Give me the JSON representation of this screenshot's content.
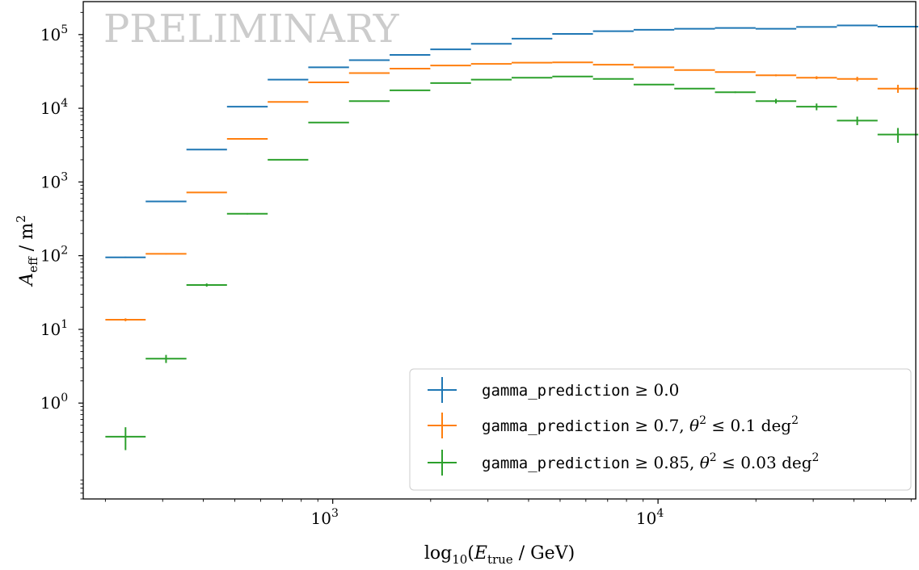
{
  "chart_data": {
    "type": "scatter",
    "title": "",
    "watermark": "PRELIMINARY",
    "xlabel": "log10(Etrue / GeV)",
    "ylabel": "Aeff / m2",
    "xscale": "log",
    "yscale": "log",
    "xlim": [
      171,
      62000
    ],
    "ylim": [
      0.05,
      280000
    ],
    "grid": false,
    "legend_position": "bottom-right",
    "x_ticks": [
      {
        "value": 1000,
        "base": "10",
        "exp": "3"
      },
      {
        "value": 10000,
        "base": "10",
        "exp": "4"
      }
    ],
    "y_ticks": [
      {
        "value": 1,
        "base": "10",
        "exp": "0"
      },
      {
        "value": 10,
        "base": "10",
        "exp": "1"
      },
      {
        "value": 100,
        "base": "10",
        "exp": "2"
      },
      {
        "value": 1000,
        "base": "10",
        "exp": "3"
      },
      {
        "value": 10000,
        "base": "10",
        "exp": "4"
      },
      {
        "value": 100000,
        "base": "10",
        "exp": "5"
      }
    ],
    "bin_edges": [
      200,
      266,
      355,
      473,
      631,
      841,
      1122,
      1496,
      1995,
      2661,
      3548,
      4732,
      6310,
      8414,
      11220,
      14962,
      19953,
      26607,
      35481,
      47315,
      63096
    ],
    "series": [
      {
        "label_code": "gamma_prediction",
        "label_math": "≥ 0.0",
        "color": "#1f77b4",
        "bins": [
          {
            "y": 95,
            "err": 2
          },
          {
            "y": 545,
            "err": 10
          },
          {
            "y": 2750,
            "err": 30
          },
          {
            "y": 10500,
            "err": 80
          },
          {
            "y": 24500,
            "err": 150
          },
          {
            "y": 36000,
            "err": 200
          },
          {
            "y": 45000,
            "err": 250
          },
          {
            "y": 53000,
            "err": 300
          },
          {
            "y": 63000,
            "err": 350
          },
          {
            "y": 75000,
            "err": 400
          },
          {
            "y": 88000,
            "err": 450
          },
          {
            "y": 102000,
            "err": 500
          },
          {
            "y": 111000,
            "err": 550
          },
          {
            "y": 116000,
            "err": 600
          },
          {
            "y": 120000,
            "err": 650
          },
          {
            "y": 123000,
            "err": 700
          },
          {
            "y": 120000,
            "err": 800
          },
          {
            "y": 127000,
            "err": 900
          },
          {
            "y": 133000,
            "err": 1000
          },
          {
            "y": 128000,
            "err": 1500
          }
        ]
      },
      {
        "label_code": "gamma_prediction",
        "label_math": "≥ 0.7, θ² ≤ 0.1 deg²",
        "color": "#ff7f0e",
        "bins": [
          {
            "y": 13.5,
            "err": 0.6
          },
          {
            "y": 106,
            "err": 2
          },
          {
            "y": 720,
            "err": 10
          },
          {
            "y": 3850,
            "err": 30
          },
          {
            "y": 12200,
            "err": 80
          },
          {
            "y": 22500,
            "err": 120
          },
          {
            "y": 30000,
            "err": 180
          },
          {
            "y": 34500,
            "err": 200
          },
          {
            "y": 38000,
            "err": 220
          },
          {
            "y": 40000,
            "err": 240
          },
          {
            "y": 41500,
            "err": 260
          },
          {
            "y": 42000,
            "err": 280
          },
          {
            "y": 39000,
            "err": 300
          },
          {
            "y": 36000,
            "err": 320
          },
          {
            "y": 33000,
            "err": 350
          },
          {
            "y": 31000,
            "err": 400
          },
          {
            "y": 28000,
            "err": 800
          },
          {
            "y": 26000,
            "err": 1200
          },
          {
            "y": 25000,
            "err": 1700
          },
          {
            "y": 18500,
            "err": 2300
          }
        ]
      },
      {
        "label_code": "gamma_prediction",
        "label_math": "≥ 0.85, θ² ≤ 0.03 deg²",
        "color": "#2ca02c",
        "bins": [
          {
            "y": 0.35,
            "err": 0.12
          },
          {
            "y": 4.0,
            "err": 0.5
          },
          {
            "y": 40,
            "err": 2
          },
          {
            "y": 370,
            "err": 8
          },
          {
            "y": 2000,
            "err": 25
          },
          {
            "y": 6400,
            "err": 50
          },
          {
            "y": 12500,
            "err": 80
          },
          {
            "y": 17500,
            "err": 110
          },
          {
            "y": 22000,
            "err": 140
          },
          {
            "y": 24500,
            "err": 160
          },
          {
            "y": 26000,
            "err": 180
          },
          {
            "y": 27000,
            "err": 200
          },
          {
            "y": 25000,
            "err": 220
          },
          {
            "y": 21000,
            "err": 250
          },
          {
            "y": 18500,
            "err": 300
          },
          {
            "y": 16500,
            "err": 400
          },
          {
            "y": 12500,
            "err": 900
          },
          {
            "y": 10500,
            "err": 1100
          },
          {
            "y": 6800,
            "err": 900
          },
          {
            "y": 4400,
            "err": 1000
          }
        ]
      }
    ]
  }
}
